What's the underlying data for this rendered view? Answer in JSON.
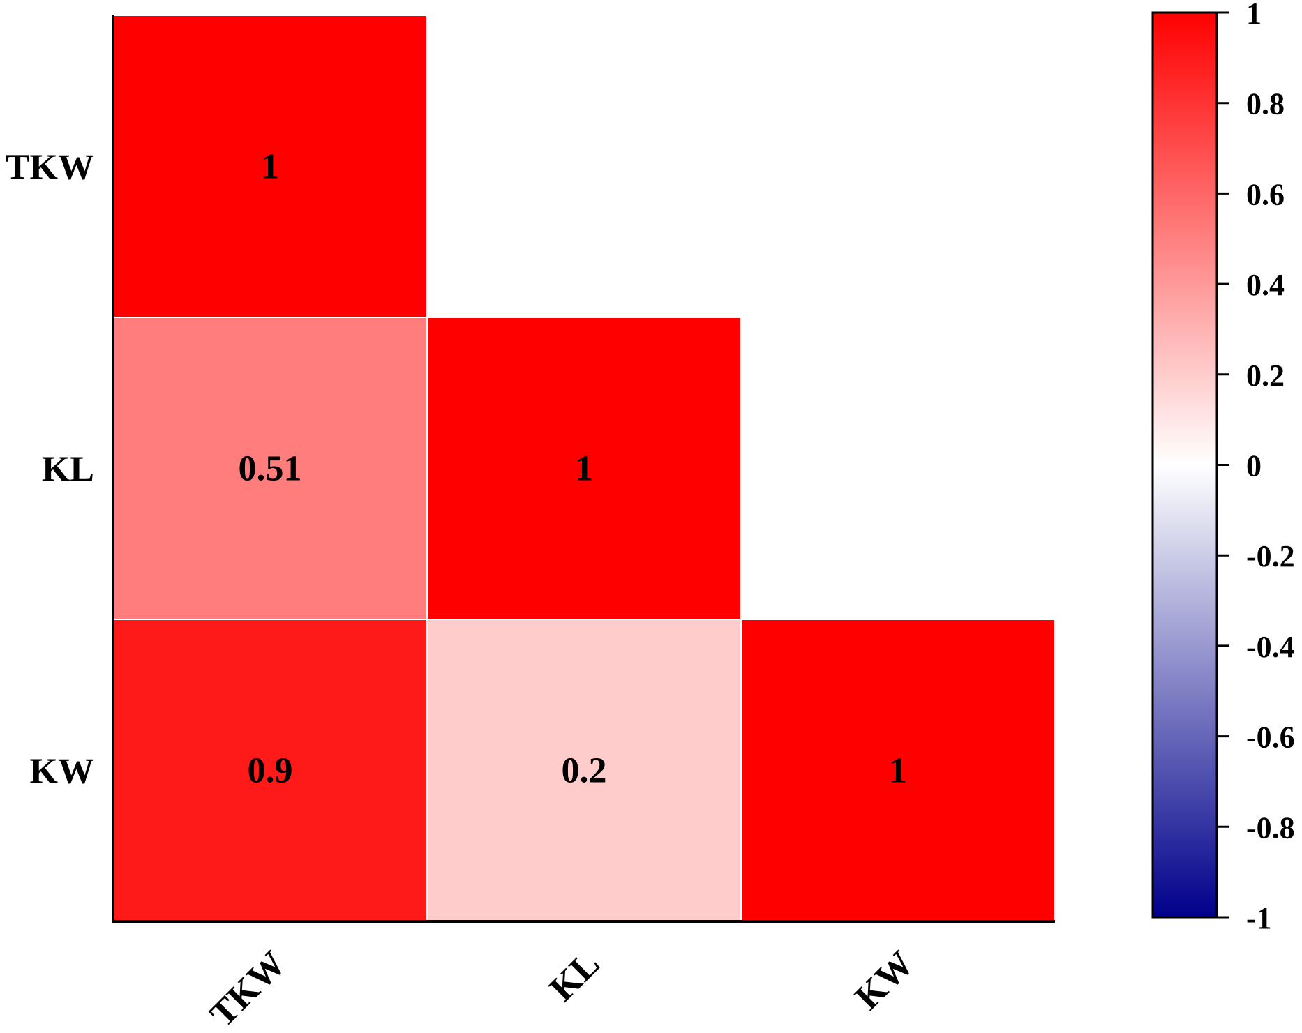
{
  "chart_data": {
    "type": "heatmap",
    "variables": [
      "TKW",
      "KL",
      "KW"
    ],
    "layout": "lower-triangle",
    "cells": [
      {
        "row": "TKW",
        "col": "TKW",
        "value": 1,
        "label": "1"
      },
      {
        "row": "KL",
        "col": "TKW",
        "value": 0.51,
        "label": "0.51"
      },
      {
        "row": "KL",
        "col": "KL",
        "value": 1,
        "label": "1"
      },
      {
        "row": "KW",
        "col": "TKW",
        "value": 0.9,
        "label": "0.9"
      },
      {
        "row": "KW",
        "col": "KL",
        "value": 0.2,
        "label": "0.2"
      },
      {
        "row": "KW",
        "col": "KW",
        "value": 1,
        "label": "1"
      }
    ],
    "colorbar": {
      "range": [
        -1,
        1
      ],
      "ticks": [
        1,
        0.8,
        0.6,
        0.4,
        0.2,
        0,
        -0.2,
        -0.4,
        -0.6,
        -0.8,
        -1
      ],
      "tick_labels": [
        "1",
        "0.8",
        "0.6",
        "0.4",
        "0.2",
        "0",
        "-0.2",
        "-0.4",
        "-0.6",
        "-0.8",
        "-1"
      ],
      "colors": {
        "low": "#00008b",
        "mid": "#ffffff",
        "high": "#ff0000"
      },
      "placement": "right"
    },
    "title": "",
    "xlabel": "",
    "ylabel": ""
  }
}
